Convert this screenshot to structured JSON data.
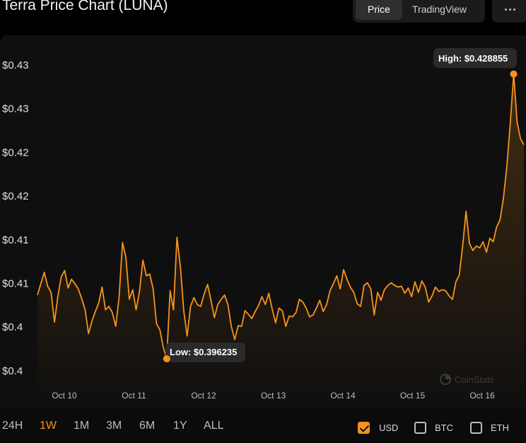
{
  "header": {
    "title": "Terra Price Chart (LUNA)",
    "tabs": [
      {
        "label": "Price",
        "active": true
      },
      {
        "label": "TradingView",
        "active": false
      }
    ],
    "more_icon": "more-horizontal-icon"
  },
  "chart_data": {
    "type": "area",
    "ytick_labels": [
      "$0.43",
      "$0.43",
      "$0.42",
      "$0.42",
      "$0.41",
      "$0.41",
      "$0.4",
      "$0.4"
    ],
    "ylim": [
      0.395,
      0.43
    ],
    "xtick_labels": [
      "Oct 10",
      "Oct 11",
      "Oct 12",
      "Oct 13",
      "Oct 14",
      "Oct 15",
      "Oct 16"
    ],
    "high_label": "High: $0.428855",
    "low_label": "Low: $0.396235",
    "high_value": 0.428855,
    "low_value": 0.396235,
    "line_color": "#f7931a",
    "watermark": "CoinStats",
    "values": [
      0.4036,
      0.4049,
      0.4062,
      0.4046,
      0.4039,
      0.4005,
      0.4035,
      0.4057,
      0.4064,
      0.4044,
      0.4054,
      0.4049,
      0.4043,
      0.4032,
      0.4019,
      0.3992,
      0.4006,
      0.4017,
      0.4027,
      0.4045,
      0.4019,
      0.4023,
      0.4016,
      0.4,
      0.4034,
      0.4096,
      0.4079,
      0.4031,
      0.4042,
      0.4019,
      0.404,
      0.4076,
      0.4058,
      0.406,
      0.4043,
      0.4003,
      0.3996,
      0.3976,
      0.3963,
      0.4041,
      0.4019,
      0.4102,
      0.4069,
      0.4018,
      0.3989,
      0.4023,
      0.4033,
      0.4025,
      0.4023,
      0.4037,
      0.4048,
      0.403,
      0.401,
      0.4025,
      0.4031,
      0.4036,
      0.4025,
      0.4,
      0.3985,
      0.4001,
      0.4,
      0.4018,
      0.4014,
      0.4009,
      0.4017,
      0.4024,
      0.4034,
      0.4025,
      0.4038,
      0.402,
      0.4004,
      0.4021,
      0.4018,
      0.4,
      0.4012,
      0.4011,
      0.4016,
      0.4031,
      0.4028,
      0.4021,
      0.4011,
      0.4013,
      0.4021,
      0.403,
      0.4017,
      0.4025,
      0.4041,
      0.4049,
      0.4058,
      0.4043,
      0.4065,
      0.4054,
      0.4045,
      0.4039,
      0.4026,
      0.4023,
      0.4047,
      0.405,
      0.4043,
      0.4013,
      0.4039,
      0.403,
      0.4042,
      0.4047,
      0.405,
      0.4047,
      0.4045,
      0.4046,
      0.4038,
      0.4044,
      0.4034,
      0.4051,
      0.4039,
      0.4052,
      0.4045,
      0.4028,
      0.4035,
      0.4045,
      0.404,
      0.4042,
      0.4041,
      0.4035,
      0.4031,
      0.4051,
      0.4059,
      0.4092,
      0.4132,
      0.4095,
      0.4087,
      0.4092,
      0.409,
      0.4097,
      0.4085,
      0.4101,
      0.4097,
      0.4114,
      0.4122,
      0.4147,
      0.4183,
      0.4233,
      0.4289,
      0.4234,
      0.4215,
      0.4208
    ]
  },
  "footer": {
    "ranges": [
      {
        "label": "24H",
        "active": false
      },
      {
        "label": "1W",
        "active": true
      },
      {
        "label": "1M",
        "active": false
      },
      {
        "label": "3M",
        "active": false
      },
      {
        "label": "6M",
        "active": false
      },
      {
        "label": "1Y",
        "active": false
      },
      {
        "label": "ALL",
        "active": false
      }
    ],
    "currencies": [
      {
        "label": "USD",
        "checked": true
      },
      {
        "label": "BTC",
        "checked": false
      },
      {
        "label": "ETH",
        "checked": false
      }
    ]
  }
}
